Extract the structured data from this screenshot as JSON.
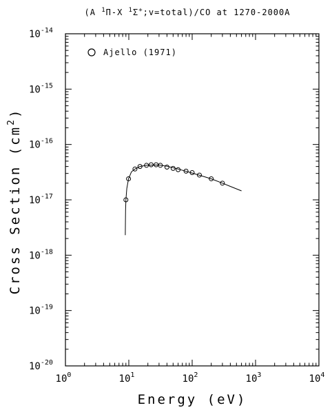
{
  "chart_data": {
    "type": "scatter",
    "title_parts": {
      "p1": "(A ",
      "sup1": "1",
      "p2": "Π-X ",
      "sup2": "1",
      "p3": "Σ",
      "sup3": "+",
      "p4": ";v=total)/CO at 1270-2000A"
    },
    "xlabel": "Energy (eV)",
    "ylabel_main": "Cross Section (cm",
    "ylabel_sup": "2",
    "ylabel_close": ")",
    "x_scale": "log",
    "y_scale": "log",
    "xlim": [
      1,
      10000
    ],
    "ylim": [
      1e-20,
      1e-14
    ],
    "x_ticks": [
      {
        "base": "10",
        "exp": "0",
        "value": 1
      },
      {
        "base": "10",
        "exp": "1",
        "value": 10
      },
      {
        "base": "10",
        "exp": "2",
        "value": 100
      },
      {
        "base": "10",
        "exp": "3",
        "value": 1000
      },
      {
        "base": "10",
        "exp": "4",
        "value": 10000
      }
    ],
    "y_ticks": [
      {
        "base": "10",
        "exp": "-20",
        "value": 1e-20
      },
      {
        "base": "10",
        "exp": "-19",
        "value": 1e-19
      },
      {
        "base": "10",
        "exp": "-18",
        "value": 1e-18
      },
      {
        "base": "10",
        "exp": "-17",
        "value": 1e-17
      },
      {
        "base": "10",
        "exp": "-16",
        "value": 1e-16
      },
      {
        "base": "10",
        "exp": "-15",
        "value": 1e-15
      },
      {
        "base": "10",
        "exp": "-14",
        "value": 1e-14
      }
    ],
    "legend": {
      "position": "top-left",
      "label": "Ajello (1971)",
      "marker": "circle"
    },
    "series": [
      {
        "kind": "points",
        "marker": "open-circle",
        "x": [
          9,
          9.9,
          12.5,
          15,
          19,
          22.5,
          27,
          31.5,
          40,
          50,
          60,
          80,
          100,
          130,
          200,
          300
        ],
        "y": [
          1e-17,
          2.4e-17,
          3.6e-17,
          4e-17,
          4.2e-17,
          4.3e-17,
          4.3e-17,
          4.2e-17,
          3.9e-17,
          3.7e-17,
          3.5e-17,
          3.3e-17,
          3.1e-17,
          2.8e-17,
          2.4e-17,
          2e-17
        ]
      },
      {
        "kind": "line",
        "x": [
          8.8,
          8.85,
          8.9,
          9.0,
          9.3,
          9.9,
          11,
          12.5,
          15,
          19,
          25,
          30,
          40,
          60,
          100,
          150,
          200,
          300,
          400,
          600
        ],
        "y": [
          2.3e-18,
          4e-18,
          6.5e-18,
          1e-17,
          1.6e-17,
          2.4e-17,
          3.2e-17,
          3.6e-17,
          4e-17,
          4.2e-17,
          4.25e-17,
          4.25e-17,
          4.05e-17,
          3.6e-17,
          3.05e-17,
          2.65e-17,
          2.4e-17,
          2e-17,
          1.75e-17,
          1.45e-17
        ]
      }
    ]
  }
}
